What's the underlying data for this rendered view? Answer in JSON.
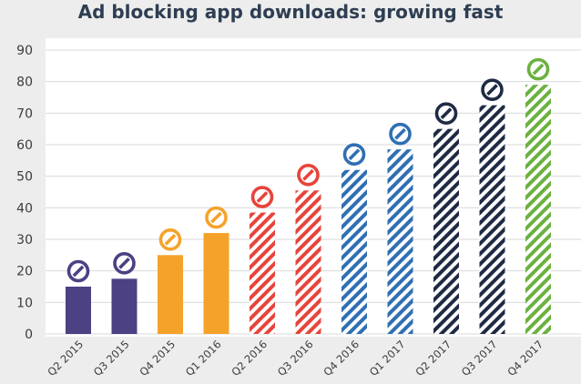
{
  "chart_data": {
    "type": "bar",
    "title": "Ad blocking app downloads: growing fast",
    "xlabel": "",
    "ylabel": "",
    "ylim": [
      0,
      90
    ],
    "yticks": [
      0,
      10,
      20,
      30,
      40,
      50,
      60,
      70,
      80,
      90
    ],
    "grid": true,
    "legend": "none",
    "categories": [
      "Q2 2015",
      "Q3 2015",
      "Q4 2015",
      "Q1 2016",
      "Q2 2016",
      "Q3 2016",
      "Q4 2016",
      "Q1 2017",
      "Q2 2017",
      "Q3 2017",
      "Q4 2017"
    ],
    "values": [
      15,
      17.5,
      25,
      32,
      38.5,
      45.5,
      52,
      58.5,
      65,
      72.5,
      79
    ],
    "bar_colors": [
      "#4b4183",
      "#4b4183",
      "#f5a22b",
      "#f5a22b",
      "#e7443b",
      "#e7443b",
      "#2f6fb4",
      "#2f6fb4",
      "#1f2a44",
      "#1f2a44",
      "#6bb13f"
    ],
    "bar_fill_styles": [
      "solid",
      "solid",
      "solid",
      "solid",
      "hatched",
      "hatched",
      "hatched",
      "hatched",
      "hatched",
      "hatched",
      "hatched"
    ],
    "bar_marker_icon": "no-entry-icon"
  }
}
